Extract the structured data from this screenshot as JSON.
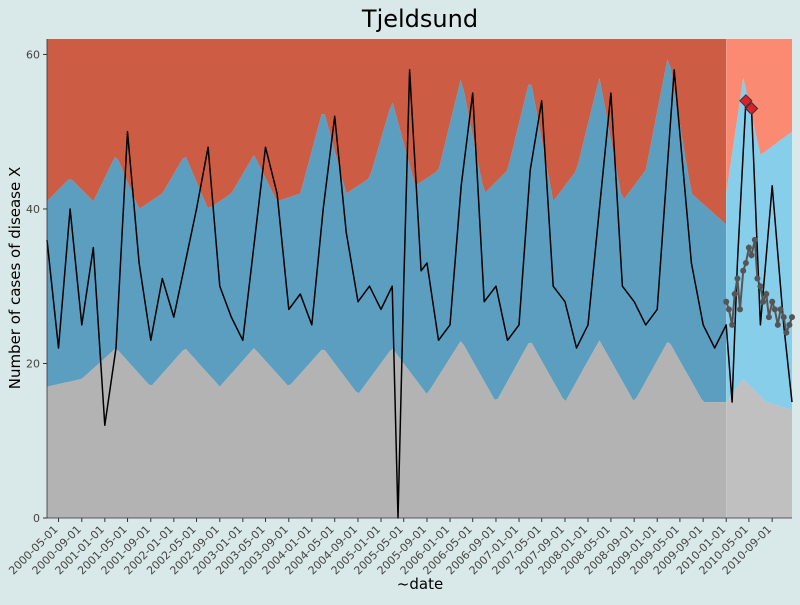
{
  "chart_data": {
    "type": "area",
    "title": "Tjeldsund",
    "xlabel": "~date",
    "ylabel": "Number of cases of disease X",
    "ylim": [
      0,
      62
    ],
    "y_ticks": [
      0,
      20,
      40,
      60
    ],
    "x_range": [
      "2000-03-01",
      "2010-12-15"
    ],
    "x_ticks": [
      "2000-05-01",
      "2000-09-01",
      "2001-01-01",
      "2001-05-01",
      "2001-09-01",
      "2002-01-01",
      "2002-05-01",
      "2002-09-01",
      "2003-01-01",
      "2003-05-01",
      "2003-09-01",
      "2004-01-01",
      "2004-05-01",
      "2004-09-01",
      "2005-01-01",
      "2005-05-01",
      "2005-09-01",
      "2006-01-01",
      "2006-05-01",
      "2006-09-01",
      "2007-01-01",
      "2007-05-01",
      "2007-09-01",
      "2008-01-01",
      "2008-05-01",
      "2008-09-01",
      "2009-01-01",
      "2009-05-01",
      "2009-09-01",
      "2010-01-01",
      "2010-05-01",
      "2010-09-01"
    ],
    "prediction_start": "2010-01-01",
    "grid": false,
    "colors": {
      "upper_band": "#cd5c44",
      "normal_band": "#5b9ec0",
      "lower_band": "#b3b3b3",
      "upper_band_pred": "#fa8b72",
      "normal_band_pred": "#87ceeb",
      "lower_band_pred": "#c0c0c0",
      "line": "#000000",
      "prediction_points": "#555555",
      "alert_points": "#e01e2b"
    },
    "upper_threshold_knots": [
      [
        "2000-03-01",
        41
      ],
      [
        "2000-07-01",
        44
      ],
      [
        "2000-11-01",
        41
      ],
      [
        "2001-03-01",
        47
      ],
      [
        "2001-07-01",
        40
      ],
      [
        "2001-11-01",
        42
      ],
      [
        "2002-03-01",
        47
      ],
      [
        "2002-07-01",
        40
      ],
      [
        "2002-11-01",
        42
      ],
      [
        "2003-03-01",
        47
      ],
      [
        "2003-07-01",
        41
      ],
      [
        "2003-11-01",
        42
      ],
      [
        "2004-03-01",
        53
      ],
      [
        "2004-07-01",
        42
      ],
      [
        "2004-11-01",
        44
      ],
      [
        "2005-03-01",
        54
      ],
      [
        "2005-07-01",
        43
      ],
      [
        "2005-11-01",
        45
      ],
      [
        "2006-03-01",
        57
      ],
      [
        "2006-07-01",
        42
      ],
      [
        "2006-11-01",
        45
      ],
      [
        "2007-03-01",
        57
      ],
      [
        "2007-07-01",
        41
      ],
      [
        "2007-11-01",
        45
      ],
      [
        "2008-03-01",
        57
      ],
      [
        "2008-07-01",
        41
      ],
      [
        "2008-11-01",
        45
      ],
      [
        "2009-03-01",
        60
      ],
      [
        "2009-07-01",
        42
      ],
      [
        "2009-12-31",
        38
      ],
      [
        "2010-01-01",
        42
      ],
      [
        "2010-04-01",
        57
      ],
      [
        "2010-07-01",
        47
      ],
      [
        "2010-12-15",
        50
      ]
    ],
    "lower_threshold_knots": [
      [
        "2000-03-01",
        17
      ],
      [
        "2000-09-01",
        18
      ],
      [
        "2001-03-01",
        22
      ],
      [
        "2001-09-01",
        17
      ],
      [
        "2002-03-01",
        22
      ],
      [
        "2002-09-01",
        17
      ],
      [
        "2003-03-01",
        22
      ],
      [
        "2003-09-01",
        17
      ],
      [
        "2004-03-01",
        22
      ],
      [
        "2004-09-01",
        16
      ],
      [
        "2005-03-01",
        22
      ],
      [
        "2005-09-01",
        16
      ],
      [
        "2006-03-01",
        23
      ],
      [
        "2006-09-01",
        15
      ],
      [
        "2007-03-01",
        23
      ],
      [
        "2007-09-01",
        15
      ],
      [
        "2008-03-01",
        23
      ],
      [
        "2008-09-01",
        15
      ],
      [
        "2009-03-01",
        23
      ],
      [
        "2009-09-01",
        15
      ],
      [
        "2009-12-31",
        15
      ],
      [
        "2010-01-01",
        15
      ],
      [
        "2010-04-01",
        18
      ],
      [
        "2010-08-01",
        15
      ],
      [
        "2010-12-15",
        14
      ]
    ],
    "series_knots": [
      [
        "2000-03-01",
        36
      ],
      [
        "2000-05-01",
        22
      ],
      [
        "2000-07-01",
        40
      ],
      [
        "2000-09-01",
        25
      ],
      [
        "2000-11-01",
        35
      ],
      [
        "2001-01-01",
        12
      ],
      [
        "2001-03-01",
        22
      ],
      [
        "2001-05-01",
        50
      ],
      [
        "2001-07-01",
        33
      ],
      [
        "2001-09-01",
        23
      ],
      [
        "2001-11-01",
        31
      ],
      [
        "2002-01-01",
        26
      ],
      [
        "2002-05-01",
        40
      ],
      [
        "2002-07-01",
        48
      ],
      [
        "2002-09-01",
        30
      ],
      [
        "2002-11-01",
        26
      ],
      [
        "2003-01-01",
        23
      ],
      [
        "2003-05-01",
        48
      ],
      [
        "2003-07-01",
        42
      ],
      [
        "2003-09-01",
        27
      ],
      [
        "2003-11-01",
        29
      ],
      [
        "2004-01-01",
        25
      ],
      [
        "2004-03-01",
        40
      ],
      [
        "2004-05-01",
        52
      ],
      [
        "2004-07-01",
        37
      ],
      [
        "2004-09-01",
        28
      ],
      [
        "2004-11-01",
        30
      ],
      [
        "2005-01-01",
        27
      ],
      [
        "2005-03-01",
        30
      ],
      [
        "2005-04-01",
        0
      ],
      [
        "2005-05-01",
        30
      ],
      [
        "2005-06-01",
        58
      ],
      [
        "2005-08-01",
        32
      ],
      [
        "2005-09-01",
        33
      ],
      [
        "2005-11-01",
        23
      ],
      [
        "2006-01-01",
        25
      ],
      [
        "2006-03-01",
        43
      ],
      [
        "2006-05-01",
        55
      ],
      [
        "2006-07-01",
        28
      ],
      [
        "2006-09-01",
        30
      ],
      [
        "2006-11-01",
        23
      ],
      [
        "2007-01-01",
        25
      ],
      [
        "2007-03-01",
        45
      ],
      [
        "2007-05-01",
        54
      ],
      [
        "2007-07-01",
        30
      ],
      [
        "2007-09-01",
        28
      ],
      [
        "2007-11-01",
        22
      ],
      [
        "2008-01-01",
        25
      ],
      [
        "2008-03-01",
        40
      ],
      [
        "2008-05-01",
        55
      ],
      [
        "2008-07-01",
        30
      ],
      [
        "2008-09-01",
        28
      ],
      [
        "2008-11-01",
        25
      ],
      [
        "2009-01-01",
        27
      ],
      [
        "2009-04-01",
        58
      ],
      [
        "2009-07-01",
        33
      ],
      [
        "2009-09-01",
        25
      ],
      [
        "2009-11-01",
        22
      ],
      [
        "2010-01-01",
        25
      ],
      [
        "2010-02-01",
        15
      ],
      [
        "2010-03-01",
        33
      ],
      [
        "2010-04-15",
        54
      ],
      [
        "2010-05-15",
        53
      ],
      [
        "2010-07-01",
        25
      ],
      [
        "2010-09-01",
        43
      ],
      [
        "2010-11-01",
        25
      ],
      [
        "2010-12-15",
        15
      ]
    ],
    "prediction_points": [
      [
        "2010-01-01",
        28
      ],
      [
        "2010-01-15",
        27
      ],
      [
        "2010-02-01",
        25
      ],
      [
        "2010-02-15",
        29
      ],
      [
        "2010-03-01",
        31
      ],
      [
        "2010-03-15",
        27
      ],
      [
        "2010-04-01",
        32
      ],
      [
        "2010-04-15",
        33
      ],
      [
        "2010-05-01",
        35
      ],
      [
        "2010-05-15",
        34
      ],
      [
        "2010-06-01",
        36
      ],
      [
        "2010-06-15",
        31
      ],
      [
        "2010-07-01",
        30
      ],
      [
        "2010-07-15",
        28
      ],
      [
        "2010-08-01",
        29
      ],
      [
        "2010-08-15",
        26
      ],
      [
        "2010-09-01",
        28
      ],
      [
        "2010-09-15",
        27
      ],
      [
        "2010-10-01",
        25
      ],
      [
        "2010-10-15",
        27
      ],
      [
        "2010-11-01",
        26
      ],
      [
        "2010-11-15",
        24
      ],
      [
        "2010-12-01",
        25
      ],
      [
        "2010-12-15",
        26
      ]
    ],
    "alert_points": [
      [
        "2010-04-15",
        54
      ],
      [
        "2010-05-15",
        53
      ]
    ]
  }
}
